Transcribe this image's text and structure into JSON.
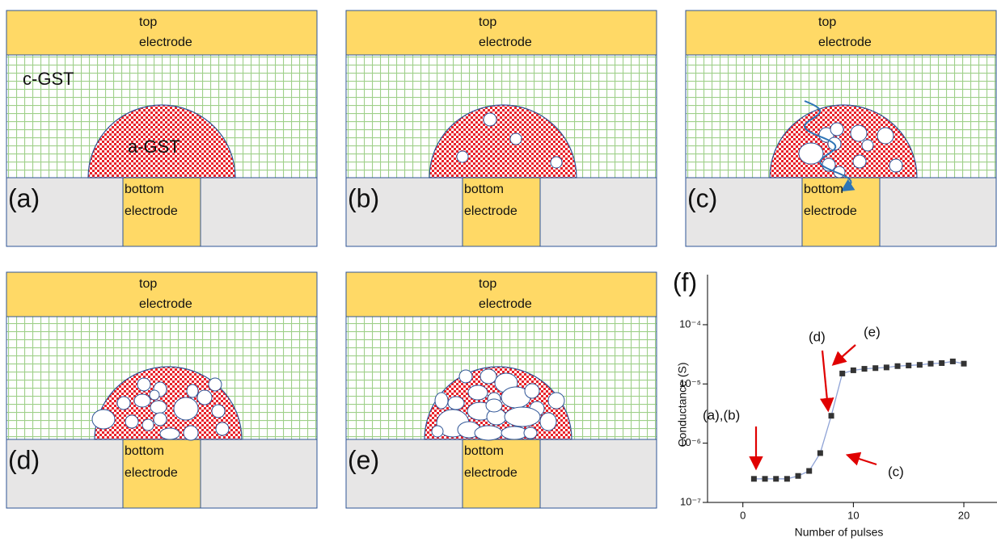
{
  "panels": [
    {
      "label": "(a)",
      "top_electrode": [
        "top",
        "electrode"
      ],
      "bottom_electrode": [
        "bottom",
        "electrode"
      ],
      "crystalline_label": "c-GST",
      "amorphous_label": "a-GST"
    },
    {
      "label": "(b)",
      "top_electrode": [
        "top",
        "electrode"
      ],
      "bottom_electrode": [
        "bottom",
        "electrode"
      ]
    },
    {
      "label": "(c)",
      "top_electrode": [
        "top",
        "electrode"
      ],
      "bottom_electrode": [
        "bottom",
        "electrode"
      ]
    },
    {
      "label": "(d)",
      "top_electrode": [
        "top",
        "electrode"
      ],
      "bottom_electrode": [
        "bottom",
        "electrode"
      ]
    },
    {
      "label": "(e)",
      "top_electrode": [
        "top",
        "electrode"
      ],
      "bottom_electrode": [
        "bottom",
        "electrode"
      ]
    }
  ],
  "chart_data": {
    "type": "line",
    "panel_label": "(f)",
    "x_label": "Number of pulses",
    "y_label": "Conductance (S)",
    "x": [
      1,
      2,
      3,
      4,
      5,
      6,
      7,
      8,
      9,
      10,
      11,
      12,
      13,
      14,
      15,
      16,
      17,
      18,
      19,
      20
    ],
    "series": [
      {
        "color": "#333333",
        "line_color": "#8fa3d6",
        "values": [
          2.5e-07,
          2.5e-07,
          2.5e-07,
          2.5e-07,
          2.8e-07,
          3.4e-07,
          6.8e-07,
          2.9e-06,
          1.5e-05,
          1.7e-05,
          1.8e-05,
          1.85e-05,
          1.9e-05,
          2e-05,
          2.05e-05,
          2.1e-05,
          2.2e-05,
          2.25e-05,
          2.4e-05,
          2.2e-05
        ]
      }
    ],
    "xlim": [
      -3.2,
      23
    ],
    "xticks": [
      0,
      10,
      20
    ],
    "ylim": [
      1e-07,
      0.0007
    ],
    "yscale": "log",
    "yticks": [
      {
        "value": 1e-07,
        "label": "10⁻⁷"
      },
      {
        "value": 1e-06,
        "label": "10⁻⁶"
      },
      {
        "value": 1e-05,
        "label": "10⁻⁵"
      },
      {
        "value": 0.0001,
        "label": "10⁻⁴"
      }
    ],
    "annotations": [
      "(a),(b)",
      "(c)",
      "(d)",
      "(e)"
    ],
    "annotation_color": "#e00000"
  }
}
